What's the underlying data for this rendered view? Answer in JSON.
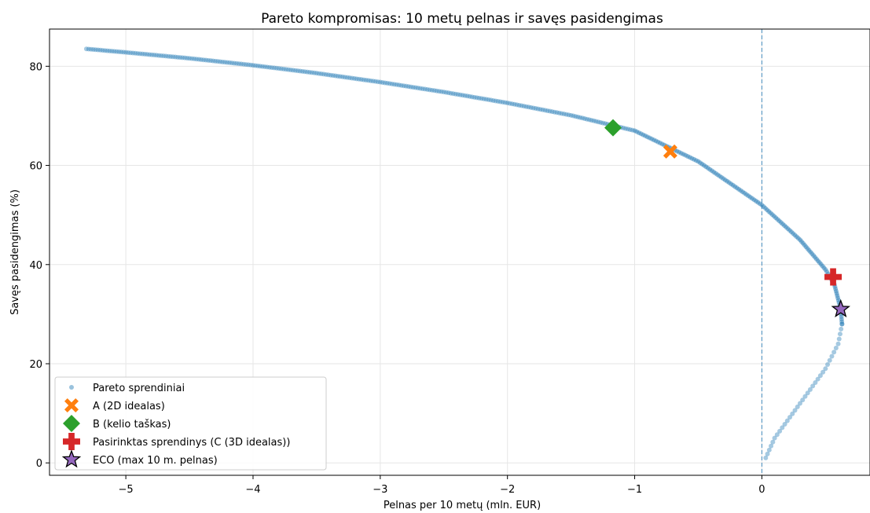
{
  "chart_data": {
    "type": "scatter",
    "title": "Pareto kompromisas: 10 metų pelnas ir savęs pasidengimas",
    "xlabel": "Pelnas per 10 metų (mln. EUR)",
    "ylabel": "Savęs pasidengimas (%)",
    "xlim": [
      -5.6,
      0.85
    ],
    "ylim": [
      -2.5,
      87.5
    ],
    "xticks": [
      -5,
      -4,
      -3,
      -2,
      -1,
      0
    ],
    "xtick_labels": [
      "−5",
      "−4",
      "−3",
      "−2",
      "−1",
      "0"
    ],
    "yticks": [
      0,
      20,
      40,
      60,
      80
    ],
    "ytick_labels": [
      "0",
      "20",
      "40",
      "60",
      "80"
    ],
    "grid": true,
    "vline": {
      "x": 0,
      "color": "#1f77b4",
      "style": "dashed"
    },
    "legend_position": "lower-left",
    "pareto_front": {
      "name": "Pareto sprendiniai",
      "color": "#1f77b4",
      "upper_branch": [
        [
          -5.31,
          83.5
        ],
        [
          -5.0,
          82.8
        ],
        [
          -4.5,
          81.6
        ],
        [
          -4.0,
          80.2
        ],
        [
          -3.5,
          78.6
        ],
        [
          -3.0,
          76.8
        ],
        [
          -2.5,
          74.8
        ],
        [
          -2.0,
          72.6
        ],
        [
          -1.5,
          70.1
        ],
        [
          -1.0,
          67.0
        ],
        [
          -0.5,
          60.8
        ],
        [
          0.0,
          52.0
        ],
        [
          0.3,
          45.0
        ],
        [
          0.5,
          39.0
        ],
        [
          0.57,
          36.0
        ],
        [
          0.62,
          31.0
        ],
        [
          0.63,
          28.0
        ]
      ],
      "lower_branch": [
        [
          0.63,
          28.0
        ],
        [
          0.6,
          24.0
        ],
        [
          0.5,
          19.0
        ],
        [
          0.4,
          15.5
        ],
        [
          0.3,
          12.0
        ],
        [
          0.2,
          8.5
        ],
        [
          0.1,
          5.0
        ],
        [
          0.03,
          1.0
        ]
      ]
    },
    "highlights": [
      {
        "name": "A (2D idealas)",
        "x": -0.72,
        "y": 62.8,
        "marker": "X",
        "color": "#ff7f0e"
      },
      {
        "name": "B (kelio taškas)",
        "x": -1.17,
        "y": 67.6,
        "marker": "diamond",
        "color": "#2ca02c"
      },
      {
        "name": "Pasirinktas sprendinys (C (3D idealas))",
        "x": 0.56,
        "y": 37.5,
        "marker": "plus",
        "color": "#d62728"
      },
      {
        "name": "ECO (max 10 m. pelnas)",
        "x": 0.62,
        "y": 31.0,
        "marker": "star",
        "color": "#9467bd"
      }
    ]
  }
}
